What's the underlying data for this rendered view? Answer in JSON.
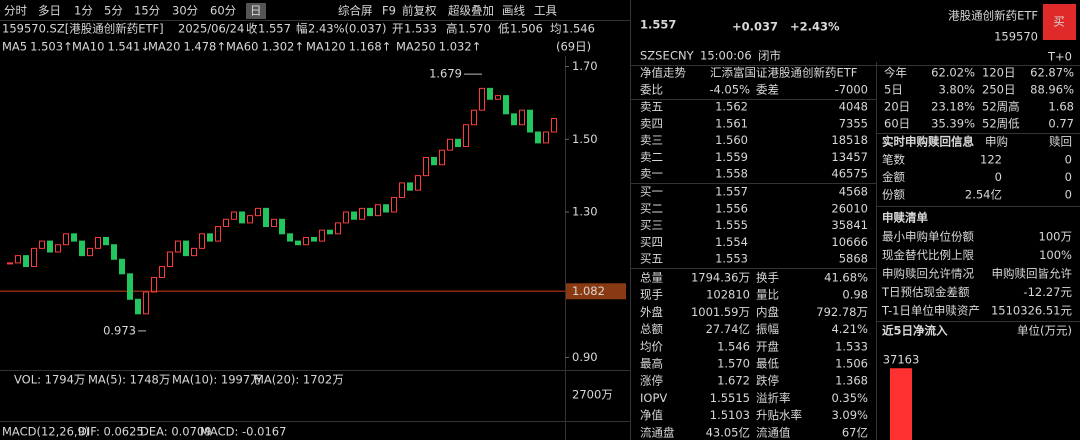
{
  "toolbar": {
    "periods": [
      "分时",
      "多日",
      "1分",
      "5分",
      "15分",
      "30分",
      "60分",
      "日"
    ],
    "tools": [
      "综合屏",
      "F9",
      "前复权",
      "超级叠加",
      "画线",
      "工具"
    ]
  },
  "quote_line": {
    "code": "159570.SZ[港股通创新药ETF]",
    "date": "2025/06/24",
    "fields": [
      {
        "label": "收",
        "value": "1.557"
      },
      {
        "label": "幅",
        "value": "2.43%(0.037)"
      },
      {
        "label": "开",
        "value": "1.533"
      },
      {
        "label": "高",
        "value": "1.570"
      },
      {
        "label": "低",
        "value": "1.506"
      },
      {
        "label": "均",
        "value": "1.546"
      }
    ]
  },
  "ma_line": {
    "items": [
      {
        "label": "MA5",
        "value": "1.503↑",
        "color": "#ffffff"
      },
      {
        "label": "MA10",
        "value": "1.541↓",
        "color": "#f0d000"
      },
      {
        "label": "MA20",
        "value": "1.478↑",
        "color": "#e040fb"
      },
      {
        "label": "MA60",
        "value": "1.302↑",
        "color": "#3ec43e"
      },
      {
        "label": "MA120",
        "value": "1.168↑",
        "color": "#35b5f0"
      },
      {
        "label": "MA250",
        "value": "1.032↑",
        "color": "#ffffff"
      }
    ],
    "range": "(69日)"
  },
  "volume_line": {
    "items": [
      {
        "text": "VOL: 1794万",
        "color": "#ffffff"
      },
      {
        "text": "MA(5): 1748万",
        "color": "#ffffff"
      },
      {
        "text": "MA(10): 1997万",
        "color": "#f0d000"
      },
      {
        "text": "MA(20): 1702万",
        "color": "#e040fb"
      }
    ],
    "axis_label": "2700万"
  },
  "macd_line": {
    "items": [
      {
        "text": "MACD(12,26,9)",
        "color": "#ffffff"
      },
      {
        "text": "DIF: 0.0625",
        "color": "#ffffff"
      },
      {
        "text": "DEA: 0.0709",
        "color": "#f0d000"
      },
      {
        "text": "MACD: -0.0167",
        "color": "#e040fb"
      }
    ]
  },
  "chart_data": [
    {
      "type": "candlestick",
      "closes": [
        1.16,
        1.18,
        1.15,
        1.2,
        1.22,
        1.19,
        1.21,
        1.24,
        1.22,
        1.18,
        1.2,
        1.23,
        1.21,
        1.17,
        1.13,
        1.06,
        1.02,
        1.08,
        1.12,
        1.15,
        1.19,
        1.22,
        1.18,
        1.2,
        1.24,
        1.22,
        1.26,
        1.28,
        1.3,
        1.27,
        1.29,
        1.31,
        1.26,
        1.28,
        1.24,
        1.22,
        1.21,
        1.23,
        1.22,
        1.25,
        1.24,
        1.27,
        1.3,
        1.28,
        1.31,
        1.29,
        1.32,
        1.3,
        1.34,
        1.38,
        1.36,
        1.4,
        1.45,
        1.43,
        1.47,
        1.5,
        1.48,
        1.54,
        1.58,
        1.64,
        1.61,
        1.62,
        1.57,
        1.54,
        1.58,
        1.52,
        1.49,
        1.52,
        1.557
      ],
      "ylim": [
        0.86,
        1.74
      ],
      "yticks": [
        {
          "value": 1.7,
          "label": "1.70"
        },
        {
          "value": 1.5,
          "label": "1.50"
        },
        {
          "value": 1.3,
          "label": "1.30"
        },
        {
          "value": 0.9,
          "label": "0.90"
        }
      ],
      "level_line": 1.082,
      "high_label": 1.679,
      "low_label": 0.973,
      "up_color": "#ff3b3b",
      "down_color": "#22c55e"
    },
    {
      "type": "bar",
      "title": "近5日净流入",
      "unit": "单位(万元)",
      "categories": [
        null
      ],
      "values": [
        37163
      ],
      "ylim": [
        0,
        40000
      ],
      "color": "#ff3030"
    }
  ],
  "header": {
    "price": "1.557",
    "change": "+0.037",
    "change_pct": "+2.43%",
    "name": "港股通创新药ETF",
    "code": "159570",
    "buy_button": "买",
    "exchange": "SZSE",
    "currency": "CNY",
    "time": "15:00:06",
    "status": "闭市",
    "trade_rule": "T+0"
  },
  "book": {
    "nav_label": "净值走势",
    "nav_text": "汇添富国证港股通创新药ETF",
    "ratio": [
      "委比",
      "-4.05%",
      "委差",
      "-7000"
    ],
    "asks": [
      [
        "卖五",
        "1.562",
        "4048"
      ],
      [
        "卖四",
        "1.561",
        "7355"
      ],
      [
        "卖三",
        "1.560",
        "18518"
      ],
      [
        "卖二",
        "1.559",
        "13457"
      ],
      [
        "卖一",
        "1.558",
        "46575"
      ]
    ],
    "bids": [
      [
        "买一",
        "1.557",
        "4568"
      ],
      [
        "买二",
        "1.556",
        "26010"
      ],
      [
        "买三",
        "1.555",
        "35841"
      ],
      [
        "买四",
        "1.554",
        "10666"
      ],
      [
        "买五",
        "1.553",
        "5868"
      ]
    ]
  },
  "stats": [
    {
      "cells": [
        "总量",
        "1794.36万",
        "换手",
        "41.68%"
      ],
      "colors": [
        "#ffffff",
        "#ffffff"
      ]
    },
    {
      "cells": [
        "现手",
        "102810",
        "量比",
        "0.98"
      ],
      "colors": [
        "#ffffff",
        "#ffffff"
      ]
    },
    {
      "cells": [
        "外盘",
        "1001.59万",
        "内盘",
        "792.78万"
      ],
      "colors": [
        "#ff3b3b",
        "#22c55e"
      ]
    },
    {
      "cells": [
        "总额",
        "27.74亿",
        "振幅",
        "4.21%"
      ],
      "colors": [
        "#ffffff",
        "#ffffff"
      ]
    },
    {
      "cells": [
        "均价",
        "1.546",
        "开盘",
        "1.533"
      ],
      "colors": [
        "#ff3b3b",
        "#ff3b3b"
      ]
    },
    {
      "cells": [
        "最高",
        "1.570",
        "最低",
        "1.506"
      ],
      "colors": [
        "#ff3b3b",
        "#22c55e"
      ]
    },
    {
      "cells": [
        "涨停",
        "1.672",
        "跌停",
        "1.368"
      ],
      "colors": [
        "#ff3b3b",
        "#22c55e"
      ]
    },
    {
      "cells": [
        "IOPV",
        "1.5515",
        "溢折率",
        "0.35%"
      ],
      "colors": [
        "#ffffff",
        "#ff3b3b"
      ]
    },
    {
      "cells": [
        "净值",
        "1.5103",
        "升贴水率",
        "3.09%"
      ],
      "colors": [
        "#ff3b3b",
        "#ff3b3b"
      ]
    },
    {
      "cells": [
        "流通盘",
        "43.05亿",
        "流通值",
        "67亿"
      ],
      "colors": [
        "#ffffff",
        "#ffffff"
      ]
    }
  ],
  "performance": [
    {
      "cells": [
        "今年",
        "62.02%",
        "120日",
        "62.87%"
      ],
      "colors": [
        "#ff3b3b",
        "#ff3b3b"
      ]
    },
    {
      "cells": [
        "5日",
        "3.80%",
        "250日",
        "88.96%"
      ],
      "colors": [
        "#ff3b3b",
        "#ff3b3b"
      ]
    },
    {
      "cells": [
        "20日",
        "23.18%",
        "52周高",
        "1.68"
      ],
      "colors": [
        "#ff3b3b",
        "#ffffff"
      ]
    },
    {
      "cells": [
        "60日",
        "35.39%",
        "52周低",
        "0.77"
      ],
      "colors": [
        "#ff3b3b",
        "#ffffff"
      ]
    }
  ],
  "subscription": {
    "title": "实时申购赎回信息",
    "columns": [
      "申购",
      "赎回"
    ],
    "rows": [
      [
        "笔数",
        "122",
        "0"
      ],
      [
        "金额",
        "0",
        "0"
      ],
      [
        "份额",
        "2.54亿",
        "0"
      ]
    ]
  },
  "creation_list": {
    "title": "申赎清单",
    "rows": [
      [
        "最小申购单位份额",
        "100万"
      ],
      [
        "现金替代比例上限",
        "100%"
      ],
      [
        "申购赎回允许情况",
        "申购赎回皆允许"
      ],
      [
        "T日预估现金差额",
        "-12.27元"
      ],
      [
        "T-1日单位申赎资产",
        "1510326.51元"
      ]
    ]
  }
}
